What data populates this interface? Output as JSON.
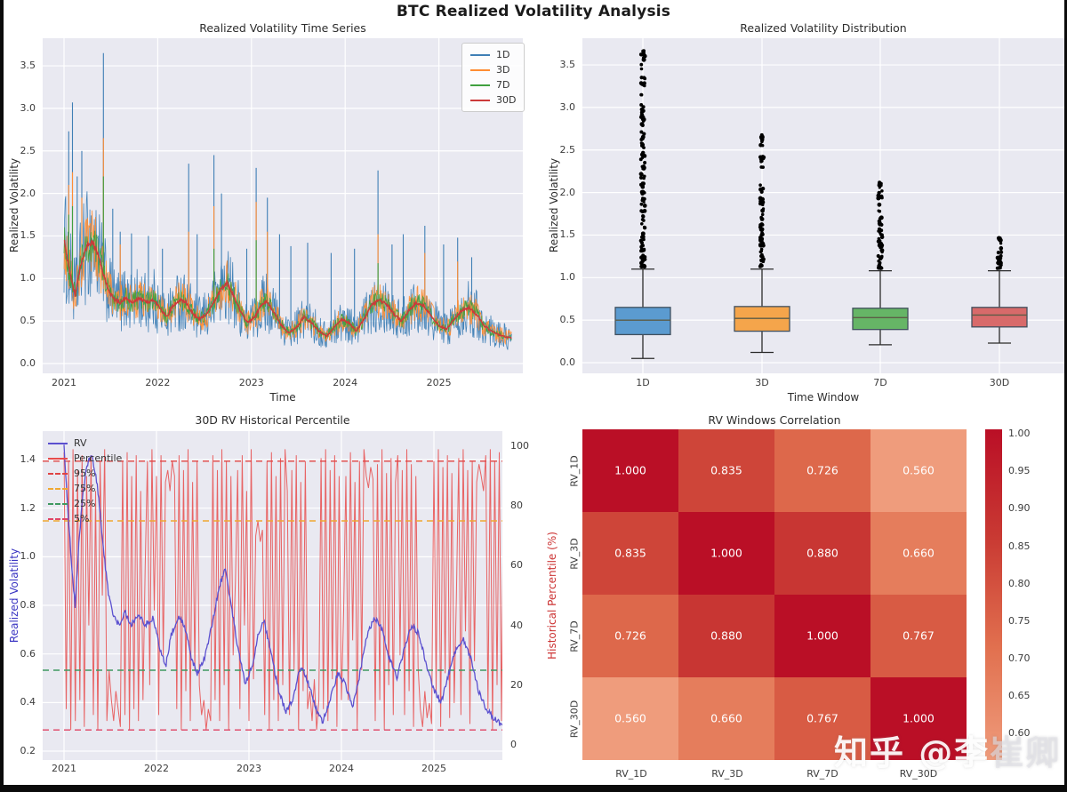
{
  "figure_title": "BTC Realized Volatility Analysis",
  "watermark": {
    "brand": "知乎 @李",
    "handle_fade": "崔卿"
  },
  "chart_data": [
    {
      "id": "ts",
      "type": "line",
      "title": "Realized Volatility Time Series",
      "xlabel": "Time",
      "ylabel": "Realized Volatility",
      "x_ticks": [
        2021,
        2022,
        2023,
        2024,
        2025
      ],
      "y_ticks": [
        0.0,
        0.5,
        1.0,
        1.5,
        2.0,
        2.5,
        3.0,
        3.5
      ],
      "xlim": [
        2021.0,
        2025.78
      ],
      "ylim": [
        -0.05,
        3.75
      ],
      "legend_position": "upper right",
      "base_points": [
        [
          2021.0,
          1.45
        ],
        [
          2021.04,
          1.2
        ],
        [
          2021.08,
          0.98
        ],
        [
          2021.12,
          0.8
        ],
        [
          2021.16,
          1.05
        ],
        [
          2021.2,
          1.25
        ],
        [
          2021.25,
          1.38
        ],
        [
          2021.3,
          1.42
        ],
        [
          2021.36,
          1.3
        ],
        [
          2021.42,
          1.05
        ],
        [
          2021.48,
          0.85
        ],
        [
          2021.54,
          0.75
        ],
        [
          2021.6,
          0.72
        ],
        [
          2021.66,
          0.78
        ],
        [
          2021.72,
          0.72
        ],
        [
          2021.8,
          0.76
        ],
        [
          2021.88,
          0.72
        ],
        [
          2021.96,
          0.75
        ],
        [
          2022.04,
          0.62
        ],
        [
          2022.1,
          0.55
        ],
        [
          2022.16,
          0.68
        ],
        [
          2022.24,
          0.75
        ],
        [
          2022.3,
          0.72
        ],
        [
          2022.38,
          0.58
        ],
        [
          2022.44,
          0.52
        ],
        [
          2022.52,
          0.58
        ],
        [
          2022.6,
          0.72
        ],
        [
          2022.68,
          0.88
        ],
        [
          2022.74,
          0.95
        ],
        [
          2022.8,
          0.82
        ],
        [
          2022.88,
          0.62
        ],
        [
          2022.96,
          0.48
        ],
        [
          2023.04,
          0.55
        ],
        [
          2023.1,
          0.68
        ],
        [
          2023.16,
          0.74
        ],
        [
          2023.24,
          0.6
        ],
        [
          2023.32,
          0.45
        ],
        [
          2023.4,
          0.36
        ],
        [
          2023.48,
          0.42
        ],
        [
          2023.56,
          0.55
        ],
        [
          2023.64,
          0.48
        ],
        [
          2023.72,
          0.38
        ],
        [
          2023.8,
          0.32
        ],
        [
          2023.88,
          0.42
        ],
        [
          2023.96,
          0.52
        ],
        [
          2024.04,
          0.48
        ],
        [
          2024.12,
          0.38
        ],
        [
          2024.2,
          0.52
        ],
        [
          2024.28,
          0.68
        ],
        [
          2024.36,
          0.75
        ],
        [
          2024.44,
          0.7
        ],
        [
          2024.52,
          0.58
        ],
        [
          2024.6,
          0.5
        ],
        [
          2024.68,
          0.62
        ],
        [
          2024.76,
          0.72
        ],
        [
          2024.84,
          0.68
        ],
        [
          2024.92,
          0.55
        ],
        [
          2025.0,
          0.45
        ],
        [
          2025.08,
          0.4
        ],
        [
          2025.16,
          0.52
        ],
        [
          2025.24,
          0.62
        ],
        [
          2025.32,
          0.66
        ],
        [
          2025.4,
          0.58
        ],
        [
          2025.48,
          0.45
        ],
        [
          2025.56,
          0.38
        ],
        [
          2025.64,
          0.34
        ],
        [
          2025.72,
          0.31
        ],
        [
          2025.78,
          0.3
        ]
      ],
      "series": [
        {
          "name": "1D",
          "color": "#3f7fb5",
          "noise_amplitude": 0.3,
          "spikes": [
            [
              2021.05,
              2.73
            ],
            [
              2021.09,
              3.07
            ],
            [
              2021.14,
              2.2
            ],
            [
              2021.19,
              2.5
            ],
            [
              2021.42,
              3.65
            ],
            [
              2021.52,
              1.82
            ],
            [
              2021.6,
              1.55
            ],
            [
              2021.72,
              1.53
            ],
            [
              2021.9,
              1.5
            ],
            [
              2022.05,
              1.35
            ],
            [
              2022.33,
              2.35
            ],
            [
              2022.42,
              1.52
            ],
            [
              2022.6,
              2.45
            ],
            [
              2022.68,
              2.0
            ],
            [
              2022.95,
              1.35
            ],
            [
              2023.05,
              2.3
            ],
            [
              2023.17,
              1.95
            ],
            [
              2023.3,
              1.52
            ],
            [
              2023.42,
              1.38
            ],
            [
              2023.6,
              1.42
            ],
            [
              2023.85,
              1.3
            ],
            [
              2024.1,
              1.35
            ],
            [
              2024.35,
              2.27
            ],
            [
              2024.5,
              1.4
            ],
            [
              2024.62,
              1.52
            ],
            [
              2024.85,
              1.62
            ],
            [
              2025.05,
              1.4
            ],
            [
              2025.2,
              1.48
            ],
            [
              2025.35,
              1.25
            ]
          ]
        },
        {
          "name": "3D",
          "color": "#ff8d33",
          "noise_amplitude": 0.18,
          "spikes": [
            [
              2021.05,
              2.1
            ],
            [
              2021.09,
              2.25
            ],
            [
              2021.19,
              1.95
            ],
            [
              2021.42,
              2.65
            ],
            [
              2021.6,
              1.4
            ],
            [
              2022.33,
              1.55
            ],
            [
              2022.6,
              1.85
            ],
            [
              2023.05,
              1.9
            ],
            [
              2023.17,
              1.55
            ],
            [
              2024.35,
              1.52
            ],
            [
              2024.85,
              1.3
            ],
            [
              2025.2,
              1.2
            ]
          ]
        },
        {
          "name": "7D",
          "color": "#3fa03f",
          "noise_amplitude": 0.1,
          "spikes": [
            [
              2021.05,
              1.75
            ],
            [
              2021.09,
              1.85
            ],
            [
              2021.42,
              2.2
            ],
            [
              2022.6,
              1.35
            ],
            [
              2023.05,
              1.45
            ],
            [
              2024.35,
              1.18
            ]
          ]
        },
        {
          "name": "30D",
          "color": "#cc3a3a",
          "noise_amplitude": 0.015,
          "spikes": []
        }
      ]
    },
    {
      "id": "box",
      "type": "box",
      "title": "Realized Volatility Distribution",
      "xlabel": "Time Window",
      "ylabel": "Realized Volatility",
      "categories": [
        "1D",
        "3D",
        "7D",
        "30D"
      ],
      "y_ticks": [
        0.0,
        0.5,
        1.0,
        1.5,
        2.0,
        2.5,
        3.0,
        3.5
      ],
      "boxes": [
        {
          "label": "1D",
          "color": "#5b9bd0",
          "whisker_low": 0.05,
          "q1": 0.33,
          "median": 0.5,
          "q3": 0.65,
          "whisker_high": 1.1,
          "outlier_max": 3.67
        },
        {
          "label": "3D",
          "color": "#f5a54b",
          "whisker_low": 0.12,
          "q1": 0.37,
          "median": 0.52,
          "q3": 0.66,
          "whisker_high": 1.1,
          "outlier_max": 2.68
        },
        {
          "label": "7D",
          "color": "#66b566",
          "whisker_low": 0.21,
          "q1": 0.39,
          "median": 0.53,
          "q3": 0.64,
          "whisker_high": 1.08,
          "outlier_max": 2.12
        },
        {
          "label": "30D",
          "color": "#d86a6a",
          "whisker_low": 0.23,
          "q1": 0.42,
          "median": 0.56,
          "q3": 0.65,
          "whisker_high": 1.08,
          "outlier_max": 1.47
        }
      ]
    },
    {
      "id": "pct",
      "type": "line-dual",
      "title": "30D RV Historical Percentile",
      "ylabel_left": "Realized Volatility",
      "ylabel_right": "Historical Percentile (%)",
      "ylabel_left_color": "#3a35c2",
      "ylabel_right_color": "#cc3333",
      "x_ticks": [
        2021,
        2022,
        2023,
        2024,
        2025
      ],
      "xlim": [
        2021.0,
        2025.78
      ],
      "left_ticks": [
        0.2,
        0.4,
        0.6,
        0.8,
        1.0,
        1.2,
        1.4
      ],
      "right_ticks": [
        0,
        20,
        40,
        60,
        80,
        100
      ],
      "rv_series": {
        "name": "RV",
        "color": "#5b50cf"
      },
      "percentile_series": {
        "name": "Percentile",
        "color": "#e84b4b",
        "values": [
          98,
          12,
          95,
          5,
          99,
          8,
          92,
          15,
          97,
          6,
          90,
          40,
          97,
          10,
          85,
          5,
          95,
          50,
          99,
          8,
          25,
          15,
          8,
          18,
          12,
          6,
          95,
          10,
          98,
          5,
          90,
          12,
          97,
          8,
          85,
          15,
          60,
          95,
          20,
          99,
          45,
          90,
          10,
          97,
          30,
          88,
          92,
          85,
          95,
          90,
          12,
          97,
          5,
          92,
          18,
          99,
          8,
          88,
          25,
          95,
          20,
          10,
          15,
          5,
          12,
          8,
          97,
          15,
          92,
          8,
          99,
          20,
          95,
          5,
          90,
          30,
          55,
          92,
          12,
          97,
          40,
          85,
          8,
          99,
          22,
          70,
          75,
          68,
          72,
          10,
          95,
          5,
          98,
          15,
          90,
          8,
          96,
          20,
          99,
          85,
          10,
          92,
          25,
          97,
          5,
          88,
          18,
          95,
          12,
          18,
          8,
          22,
          5,
          15,
          96,
          12,
          99,
          8,
          92,
          22,
          97,
          6,
          90,
          15,
          45,
          90,
          15,
          98,
          35,
          88,
          5,
          95,
          25,
          99,
          90,
          86,
          93,
          89,
          8,
          94,
          15,
          99,
          5,
          91,
          20,
          96,
          10,
          88,
          97,
          30,
          92,
          10,
          99,
          18,
          94,
          6,
          90,
          26,
          12,
          6,
          18,
          9,
          14,
          7,
          95,
          18,
          99,
          6,
          93,
          24,
          97,
          9,
          91,
          14,
          50,
          96,
          10,
          99,
          38,
          92,
          7,
          95,
          28,
          88,
          94,
          90,
          85,
          97,
          12,
          99,
          5,
          95,
          20,
          98,
          8,
          100,
          3
        ]
      },
      "hlines": [
        {
          "label": "95%",
          "value": 95,
          "color": "#e04343"
        },
        {
          "label": "75%",
          "value": 75,
          "color": "#f0a832"
        },
        {
          "label": "25%",
          "value": 25,
          "color": "#3f9960"
        },
        {
          "label": "5%",
          "value": 5,
          "color": "#e04565"
        }
      ],
      "legend": [
        {
          "label": "RV",
          "color": "#5b50cf",
          "dash": false
        },
        {
          "label": "Percentile",
          "color": "#e84b4b",
          "dash": false
        },
        {
          "label": "95%",
          "color": "#e04343",
          "dash": true
        },
        {
          "label": "75%",
          "color": "#f0a832",
          "dash": true
        },
        {
          "label": "25%",
          "color": "#3f9960",
          "dash": true
        },
        {
          "label": "5%",
          "color": "#e04565",
          "dash": true
        }
      ]
    },
    {
      "id": "corr",
      "type": "heatmap",
      "title": "RV Windows Correlation",
      "labels": [
        "RV_1D",
        "RV_3D",
        "RV_7D",
        "RV_30D"
      ],
      "matrix": [
        [
          1.0,
          0.835,
          0.726,
          0.56
        ],
        [
          0.835,
          1.0,
          0.88,
          0.66
        ],
        [
          0.726,
          0.88,
          1.0,
          0.767
        ],
        [
          0.56,
          0.66,
          0.767,
          1.0
        ]
      ],
      "colorbar_ticks": [
        1.0,
        0.95,
        0.9,
        0.85,
        0.8,
        0.75,
        0.7,
        0.65,
        0.6
      ],
      "colormap_stops": [
        [
          0.56,
          "#ef9c7c"
        ],
        [
          0.7,
          "#e1704f"
        ],
        [
          0.85,
          "#cc4036"
        ],
        [
          1.0,
          "#ba0f26"
        ]
      ]
    }
  ],
  "style": {
    "panel_bg": "#e9e9f1",
    "grid_color": "#ffffff",
    "outlier_color": "#000000"
  }
}
